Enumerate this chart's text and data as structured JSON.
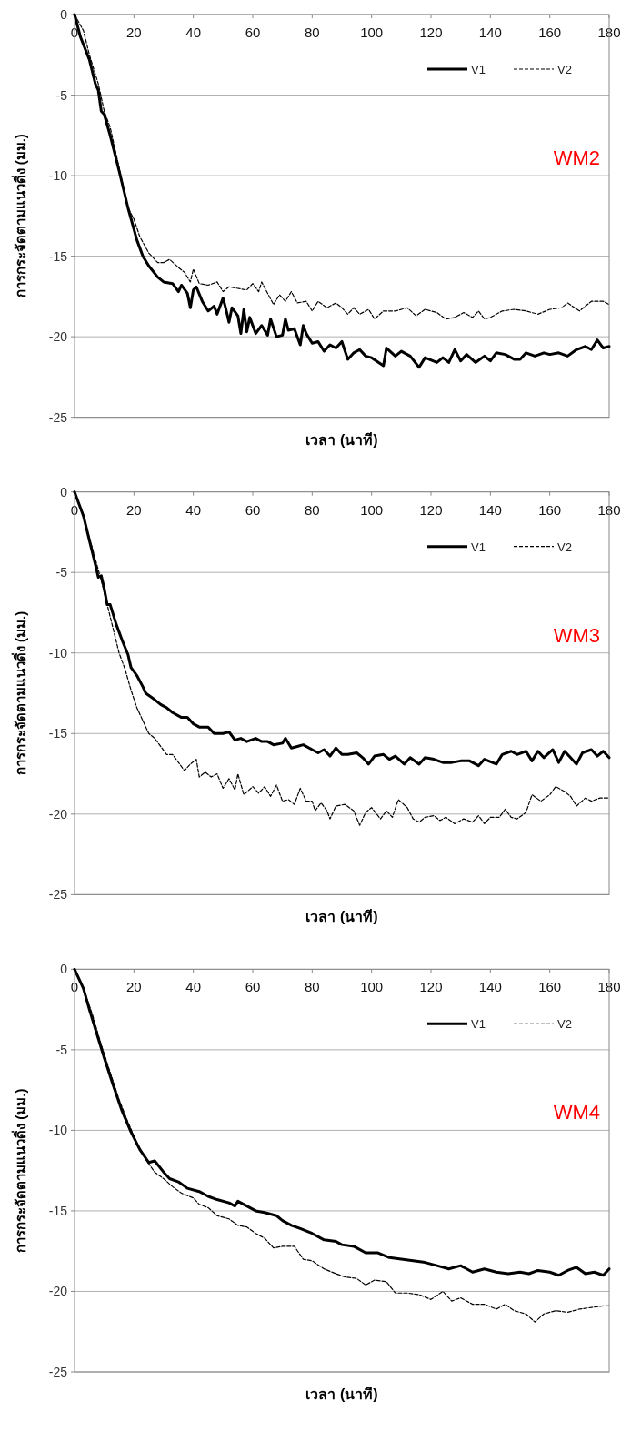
{
  "chart_data": [
    {
      "type": "line",
      "xlabel": "เวลา (นาที)",
      "ylabel": "การกระจัดตามแนวดิ่ง (มม.)",
      "annotations": [
        "WM2"
      ],
      "xlim": [
        0,
        180
      ],
      "ylim": [
        -25,
        0
      ],
      "xticks": [
        0,
        20,
        40,
        60,
        80,
        100,
        120,
        140,
        160,
        180
      ],
      "yticks": [
        0,
        -5,
        -10,
        -15,
        -20,
        -25
      ],
      "grid": "y",
      "legend": "top right",
      "series": [
        {
          "name": "V1",
          "color": "#000000",
          "line_style": "solid",
          "x": [
            0,
            2,
            5,
            7,
            8,
            9,
            10,
            12,
            15,
            18,
            21,
            23,
            25,
            28,
            30,
            33,
            35,
            36,
            38,
            39,
            40,
            41,
            43,
            45,
            47,
            48,
            50,
            51,
            52,
            53,
            55,
            56,
            57,
            58,
            59,
            61,
            63,
            65,
            66,
            68,
            70,
            71,
            72,
            74,
            76,
            77,
            78,
            80,
            82,
            84,
            86,
            88,
            90,
            92,
            94,
            96,
            98,
            100,
            104,
            105,
            108,
            110,
            113,
            116,
            118,
            122,
            124,
            126,
            128,
            130,
            132,
            135,
            138,
            140,
            142,
            145,
            148,
            150,
            152,
            155,
            158,
            160,
            163,
            166,
            169,
            172,
            174,
            176,
            178,
            180
          ],
          "values": [
            0,
            -1.4,
            -2.8,
            -4.3,
            -4.7,
            -6,
            -6.2,
            -7.5,
            -9.7,
            -12,
            -14,
            -15,
            -15.6,
            -16.3,
            -16.6,
            -16.7,
            -17.2,
            -16.8,
            -17.3,
            -18.2,
            -17.1,
            -16.9,
            -17.8,
            -18.4,
            -18.1,
            -18.6,
            -17.6,
            -18.3,
            -19.1,
            -18.2,
            -18.7,
            -19.8,
            -18.3,
            -19.7,
            -18.8,
            -19.8,
            -19.3,
            -19.9,
            -18.9,
            -20,
            -19.9,
            -18.9,
            -19.6,
            -19.5,
            -20.5,
            -19.3,
            -19.8,
            -20.4,
            -20.3,
            -20.9,
            -20.5,
            -20.7,
            -20.3,
            -21.4,
            -21,
            -20.8,
            -21.2,
            -21.3,
            -21.8,
            -20.7,
            -21.2,
            -20.9,
            -21.2,
            -21.9,
            -21.3,
            -21.6,
            -21.3,
            -21.6,
            -20.8,
            -21.5,
            -21.1,
            -21.6,
            -21.2,
            -21.5,
            -21,
            -21.1,
            -21.4,
            -21.4,
            -21,
            -21.2,
            -21,
            -21.1,
            -21,
            -21.2,
            -20.8,
            -20.6,
            -20.8,
            -20.2,
            -20.7,
            -20.6
          ]
        },
        {
          "name": "V2",
          "color": "#000000",
          "line_style": "dashed",
          "x": [
            0,
            3,
            5,
            8,
            10,
            12,
            15,
            18,
            20,
            22,
            25,
            28,
            30,
            32,
            35,
            37,
            39,
            40,
            42,
            45,
            48,
            50,
            52,
            55,
            58,
            60,
            62,
            63,
            65,
            67,
            69,
            71,
            73,
            75,
            78,
            80,
            82,
            85,
            88,
            90,
            92,
            94,
            96,
            99,
            101,
            104,
            108,
            112,
            115,
            118,
            122,
            125,
            128,
            131,
            134,
            136,
            138,
            140,
            144,
            148,
            152,
            156,
            160,
            164,
            166,
            170,
            174,
            178,
            180
          ],
          "values": [
            0,
            -1,
            -2.5,
            -4.3,
            -6,
            -7,
            -9.5,
            -12,
            -12.7,
            -13.8,
            -14.8,
            -15.4,
            -15.4,
            -15.2,
            -15.7,
            -16,
            -16.6,
            -15.8,
            -16.7,
            -16.8,
            -16.6,
            -17.2,
            -16.9,
            -17,
            -17.1,
            -16.7,
            -17.2,
            -16.6,
            -17.3,
            -18,
            -17.4,
            -17.8,
            -17.2,
            -17.9,
            -17.8,
            -18.4,
            -17.8,
            -18.2,
            -17.9,
            -18.2,
            -18.6,
            -18.2,
            -18.6,
            -18.3,
            -18.9,
            -18.4,
            -18.4,
            -18.2,
            -18.7,
            -18.3,
            -18.5,
            -18.9,
            -18.8,
            -18.5,
            -18.8,
            -18.4,
            -18.9,
            -18.8,
            -18.4,
            -18.3,
            -18.4,
            -18.6,
            -18.3,
            -18.2,
            -17.9,
            -18.4,
            -17.8,
            -17.8,
            -18
          ]
        }
      ]
    },
    {
      "type": "line",
      "xlabel": "เวลา (นาที)",
      "ylabel": "การกระจัดตามแนวดิ่ง (มม.)",
      "annotations": [
        "WM3"
      ],
      "xlim": [
        0,
        180
      ],
      "ylim": [
        -25,
        0
      ],
      "xticks": [
        0,
        20,
        40,
        60,
        80,
        100,
        120,
        140,
        160,
        180
      ],
      "yticks": [
        0,
        -5,
        -10,
        -15,
        -20,
        -25
      ],
      "grid": "y",
      "legend": "top right",
      "series": [
        {
          "name": "V1",
          "color": "#000000",
          "line_style": "solid",
          "x": [
            0,
            3,
            5,
            7,
            8,
            9,
            10,
            11,
            12,
            14,
            16,
            18,
            19,
            21,
            23,
            24,
            27,
            29,
            31,
            33,
            36,
            38,
            40,
            42,
            45,
            47,
            50,
            52,
            54,
            56,
            58,
            61,
            63,
            65,
            67,
            70,
            71,
            73,
            75,
            77,
            80,
            82,
            84,
            86,
            88,
            90,
            92,
            95,
            97,
            99,
            101,
            104,
            106,
            108,
            111,
            113,
            116,
            118,
            121,
            124,
            127,
            130,
            133,
            136,
            138,
            142,
            144,
            147,
            149,
            152,
            154,
            156,
            158,
            161,
            163,
            165,
            167,
            169,
            171,
            174,
            176,
            178,
            180
          ],
          "values": [
            0,
            -1.5,
            -3,
            -4.5,
            -5.3,
            -5.2,
            -6,
            -7,
            -7,
            -8.2,
            -9.2,
            -10.1,
            -10.9,
            -11.4,
            -12.1,
            -12.5,
            -12.9,
            -13.2,
            -13.4,
            -13.7,
            -14,
            -14,
            -14.4,
            -14.6,
            -14.6,
            -15,
            -15,
            -14.9,
            -15.4,
            -15.3,
            -15.5,
            -15.3,
            -15.5,
            -15.5,
            -15.7,
            -15.6,
            -15.3,
            -15.9,
            -15.8,
            -15.7,
            -16,
            -16.2,
            -16,
            -16.4,
            -15.9,
            -16.3,
            -16.3,
            -16.2,
            -16.5,
            -16.9,
            -16.4,
            -16.3,
            -16.6,
            -16.4,
            -16.9,
            -16.5,
            -16.9,
            -16.5,
            -16.6,
            -16.8,
            -16.8,
            -16.7,
            -16.7,
            -17,
            -16.6,
            -16.9,
            -16.3,
            -16.1,
            -16.3,
            -16.1,
            -16.7,
            -16.1,
            -16.5,
            -16,
            -16.8,
            -16.1,
            -16.5,
            -16.9,
            -16.2,
            -16,
            -16.4,
            -16.1,
            -16.5
          ]
        },
        {
          "name": "V2",
          "color": "#000000",
          "line_style": "dashed",
          "x": [
            0,
            3,
            6,
            9,
            11,
            13,
            15,
            17,
            19,
            21,
            23,
            25,
            27,
            29,
            31,
            33,
            35,
            37,
            39,
            41,
            42,
            44,
            46,
            48,
            50,
            52,
            54,
            55,
            57,
            60,
            62,
            64,
            66,
            68,
            70,
            72,
            74,
            76,
            78,
            80,
            81,
            83,
            85,
            86,
            88,
            91,
            94,
            96,
            98,
            100,
            103,
            105,
            107,
            109,
            112,
            114,
            116,
            118,
            121,
            123,
            125,
            128,
            131,
            134,
            136,
            138,
            140,
            143,
            145,
            147,
            149,
            152,
            154,
            157,
            160,
            162,
            165,
            167,
            169,
            172,
            174,
            177,
            180
          ],
          "values": [
            0,
            -1.5,
            -3.5,
            -5.5,
            -7,
            -8.5,
            -10,
            -11,
            -12.3,
            -13.4,
            -14.2,
            -15,
            -15.3,
            -15.8,
            -16.3,
            -16.3,
            -16.8,
            -17.3,
            -16.9,
            -16.6,
            -17.7,
            -17.4,
            -17.7,
            -17.5,
            -18.4,
            -17.8,
            -18.5,
            -17.5,
            -18.8,
            -18.3,
            -18.7,
            -18.3,
            -18.9,
            -18.2,
            -19.2,
            -19.1,
            -19.4,
            -18.4,
            -19.2,
            -19.2,
            -19.8,
            -19.3,
            -19.8,
            -20.3,
            -19.5,
            -19.4,
            -19.8,
            -20.7,
            -19.9,
            -19.6,
            -20.3,
            -19.8,
            -20.2,
            -19.1,
            -19.6,
            -20.3,
            -20.5,
            -20.2,
            -20.1,
            -20.4,
            -20.2,
            -20.6,
            -20.3,
            -20.5,
            -20.1,
            -20.6,
            -20.2,
            -20.2,
            -19.7,
            -20.2,
            -20.3,
            -19.9,
            -18.8,
            -19.2,
            -18.8,
            -18.3,
            -18.6,
            -18.9,
            -19.5,
            -19,
            -19.2,
            -19,
            -19
          ]
        }
      ]
    },
    {
      "type": "line",
      "xlabel": "เวลา (นาที)",
      "ylabel": "การกระจัดตามแนวดิ่ง (มม.)",
      "annotations": [
        "WM4"
      ],
      "xlim": [
        0,
        180
      ],
      "ylim": [
        -25,
        0
      ],
      "xticks": [
        0,
        20,
        40,
        60,
        80,
        100,
        120,
        140,
        160,
        180
      ],
      "yticks": [
        0,
        -5,
        -10,
        -15,
        -20,
        -25
      ],
      "grid": "y",
      "legend": "top right",
      "series": [
        {
          "name": "V1",
          "color": "#000000",
          "line_style": "solid",
          "x": [
            0,
            3,
            5,
            8,
            10,
            13,
            16,
            19,
            22,
            25,
            27,
            30,
            32,
            35,
            38,
            42,
            45,
            48,
            52,
            54,
            55,
            58,
            61,
            64,
            68,
            70,
            73,
            76,
            80,
            84,
            88,
            90,
            94,
            98,
            102,
            106,
            110,
            114,
            118,
            122,
            126,
            130,
            134,
            138,
            142,
            146,
            150,
            153,
            156,
            160,
            163,
            166,
            169,
            172,
            175,
            178,
            180
          ],
          "values": [
            0,
            -1.2,
            -2.5,
            -4.3,
            -5.5,
            -7.2,
            -8.8,
            -10.1,
            -11.2,
            -12,
            -11.9,
            -12.6,
            -13,
            -13.2,
            -13.6,
            -13.8,
            -14.1,
            -14.3,
            -14.5,
            -14.7,
            -14.4,
            -14.7,
            -15,
            -15.1,
            -15.3,
            -15.6,
            -15.9,
            -16.1,
            -16.4,
            -16.8,
            -16.9,
            -17.1,
            -17.2,
            -17.6,
            -17.6,
            -17.9,
            -18,
            -18.1,
            -18.2,
            -18.4,
            -18.6,
            -18.4,
            -18.8,
            -18.6,
            -18.8,
            -18.9,
            -18.8,
            -18.9,
            -18.7,
            -18.8,
            -19,
            -18.7,
            -18.5,
            -18.9,
            -18.8,
            -19,
            -18.6
          ]
        },
        {
          "name": "V2",
          "color": "#000000",
          "line_style": "dashed",
          "x": [
            0,
            3,
            6,
            9,
            12,
            15,
            18,
            21,
            24,
            27,
            30,
            33,
            36,
            40,
            42,
            45,
            48,
            52,
            55,
            58,
            61,
            64,
            67,
            70,
            74,
            77,
            80,
            84,
            88,
            91,
            95,
            98,
            101,
            105,
            108,
            112,
            116,
            120,
            124,
            127,
            130,
            134,
            138,
            142,
            145,
            148,
            152,
            155,
            158,
            162,
            166,
            170,
            174,
            178,
            180
          ],
          "values": [
            0,
            -1.2,
            -2.8,
            -4.7,
            -6.4,
            -8.1,
            -9.5,
            -10.8,
            -11.8,
            -12.6,
            -13,
            -13.5,
            -13.9,
            -14.2,
            -14.6,
            -14.8,
            -15.3,
            -15.5,
            -15.9,
            -16,
            -16.4,
            -16.7,
            -17.3,
            -17.2,
            -17.2,
            -18,
            -18.1,
            -18.6,
            -18.9,
            -19.1,
            -19.2,
            -19.6,
            -19.3,
            -19.4,
            -20.1,
            -20.1,
            -20.2,
            -20.5,
            -20,
            -20.6,
            -20.4,
            -20.8,
            -20.8,
            -21.1,
            -20.8,
            -21.2,
            -21.4,
            -21.9,
            -21.4,
            -21.2,
            -21.3,
            -21.1,
            -21,
            -20.9,
            -20.9
          ]
        }
      ]
    }
  ]
}
